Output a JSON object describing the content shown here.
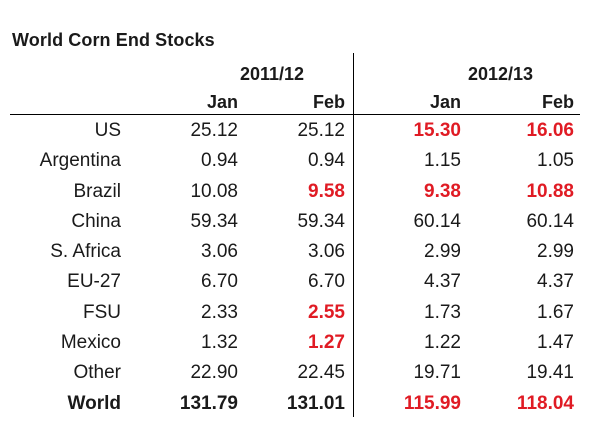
{
  "title": "World Corn End Stocks",
  "groups": [
    "2011/12",
    "2012/13"
  ],
  "subheaders": [
    "Jan",
    "Feb",
    "Jan",
    "Feb"
  ],
  "colors": {
    "highlight": "#e01b24",
    "text": "#1a1a1a"
  },
  "rows": [
    {
      "country": "US",
      "values": [
        "25.12",
        "25.12",
        "15.30",
        "16.06"
      ],
      "highlight": [
        false,
        false,
        true,
        true
      ]
    },
    {
      "country": "Argentina",
      "values": [
        "0.94",
        "0.94",
        "1.15",
        "1.05"
      ],
      "highlight": [
        false,
        false,
        false,
        false
      ]
    },
    {
      "country": "Brazil",
      "values": [
        "10.08",
        "9.58",
        "9.38",
        "10.88"
      ],
      "highlight": [
        false,
        true,
        true,
        true
      ]
    },
    {
      "country": "China",
      "values": [
        "59.34",
        "59.34",
        "60.14",
        "60.14"
      ],
      "highlight": [
        false,
        false,
        false,
        false
      ]
    },
    {
      "country": "S. Africa",
      "values": [
        "3.06",
        "3.06",
        "2.99",
        "2.99"
      ],
      "highlight": [
        false,
        false,
        false,
        false
      ]
    },
    {
      "country": "EU-27",
      "values": [
        "6.70",
        "6.70",
        "4.37",
        "4.37"
      ],
      "highlight": [
        false,
        false,
        false,
        false
      ]
    },
    {
      "country": "FSU",
      "values": [
        "2.33",
        "2.55",
        "1.73",
        "1.67"
      ],
      "highlight": [
        false,
        true,
        false,
        false
      ]
    },
    {
      "country": "Mexico",
      "values": [
        "1.32",
        "1.27",
        "1.22",
        "1.47"
      ],
      "highlight": [
        false,
        true,
        false,
        false
      ]
    },
    {
      "country": "Other",
      "values": [
        "22.90",
        "22.45",
        "19.71",
        "19.41"
      ],
      "highlight": [
        false,
        false,
        false,
        false
      ]
    },
    {
      "country": "World",
      "values": [
        "131.79",
        "131.01",
        "115.99",
        "118.04"
      ],
      "highlight": [
        false,
        false,
        true,
        true
      ],
      "total": true
    }
  ]
}
